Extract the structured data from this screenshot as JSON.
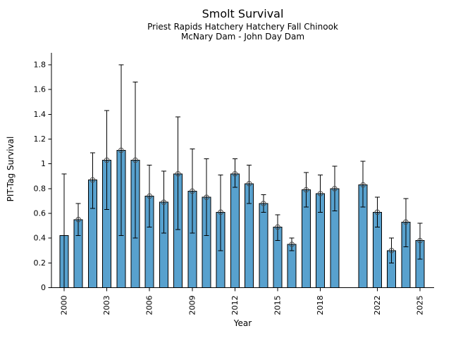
{
  "chart_data": {
    "type": "bar",
    "title": "Smolt Survival",
    "subtitle1": "Priest Rapids Hatchery Hatchery Fall Chinook",
    "subtitle2": "McNary Dam - John Day Dam",
    "xlabel": "Year",
    "ylabel": "PIT-Tag Survival",
    "ylim": [
      0,
      1.9
    ],
    "xlim": [
      1999.1,
      2026.0
    ],
    "y_ticks": [
      0,
      0.2,
      0.4,
      0.6,
      0.8,
      1,
      1.2,
      1.4,
      1.6,
      1.8
    ],
    "y_tick_labels": [
      "0",
      "0.2",
      "0.4",
      "0.6",
      "0.8",
      "1",
      "1.2",
      "1.4",
      "1.6",
      "1.8"
    ],
    "x_tick_years": [
      2000,
      2003,
      2006,
      2009,
      2012,
      2015,
      2018,
      2022,
      2025
    ],
    "missing_years": [
      2020
    ],
    "grid": false,
    "legend": "none",
    "bar_color": "#58A1CE",
    "bar_edge_color": "#000000",
    "error_bar_color": "#000000",
    "marker_style": "open-circle",
    "marker_edge_color": "#4a4a4a",
    "points": [
      {
        "year": 2000,
        "survival": 0.42,
        "ci_lo": 0.0,
        "ci_hi": 0.92,
        "marker": false
      },
      {
        "year": 2001,
        "survival": 0.55,
        "ci_lo": 0.42,
        "ci_hi": 0.68
      },
      {
        "year": 2002,
        "survival": 0.87,
        "ci_lo": 0.64,
        "ci_hi": 1.09
      },
      {
        "year": 2003,
        "survival": 1.03,
        "ci_lo": 0.63,
        "ci_hi": 1.43
      },
      {
        "year": 2004,
        "survival": 1.11,
        "ci_lo": 0.42,
        "ci_hi": 1.8
      },
      {
        "year": 2005,
        "survival": 1.03,
        "ci_lo": 0.4,
        "ci_hi": 1.66
      },
      {
        "year": 2006,
        "survival": 0.74,
        "ci_lo": 0.49,
        "ci_hi": 0.99
      },
      {
        "year": 2007,
        "survival": 0.69,
        "ci_lo": 0.44,
        "ci_hi": 0.94
      },
      {
        "year": 2008,
        "survival": 0.92,
        "ci_lo": 0.47,
        "ci_hi": 1.38
      },
      {
        "year": 2009,
        "survival": 0.78,
        "ci_lo": 0.44,
        "ci_hi": 1.12
      },
      {
        "year": 2010,
        "survival": 0.73,
        "ci_lo": 0.42,
        "ci_hi": 1.04
      },
      {
        "year": 2011,
        "survival": 0.61,
        "ci_lo": 0.3,
        "ci_hi": 0.91
      },
      {
        "year": 2012,
        "survival": 0.92,
        "ci_lo": 0.81,
        "ci_hi": 1.04
      },
      {
        "year": 2013,
        "survival": 0.84,
        "ci_lo": 0.68,
        "ci_hi": 0.99
      },
      {
        "year": 2014,
        "survival": 0.68,
        "ci_lo": 0.61,
        "ci_hi": 0.75
      },
      {
        "year": 2015,
        "survival": 0.49,
        "ci_lo": 0.38,
        "ci_hi": 0.59
      },
      {
        "year": 2016,
        "survival": 0.35,
        "ci_lo": 0.3,
        "ci_hi": 0.4
      },
      {
        "year": 2017,
        "survival": 0.79,
        "ci_lo": 0.65,
        "ci_hi": 0.93
      },
      {
        "year": 2018,
        "survival": 0.76,
        "ci_lo": 0.61,
        "ci_hi": 0.91
      },
      {
        "year": 2019,
        "survival": 0.8,
        "ci_lo": 0.62,
        "ci_hi": 0.98
      },
      {
        "year": 2021,
        "survival": 0.83,
        "ci_lo": 0.65,
        "ci_hi": 1.02
      },
      {
        "year": 2022,
        "survival": 0.61,
        "ci_lo": 0.49,
        "ci_hi": 0.73
      },
      {
        "year": 2023,
        "survival": 0.3,
        "ci_lo": 0.2,
        "ci_hi": 0.4
      },
      {
        "year": 2024,
        "survival": 0.53,
        "ci_lo": 0.33,
        "ci_hi": 0.72
      },
      {
        "year": 2025,
        "survival": 0.38,
        "ci_lo": 0.23,
        "ci_hi": 0.52
      }
    ]
  }
}
